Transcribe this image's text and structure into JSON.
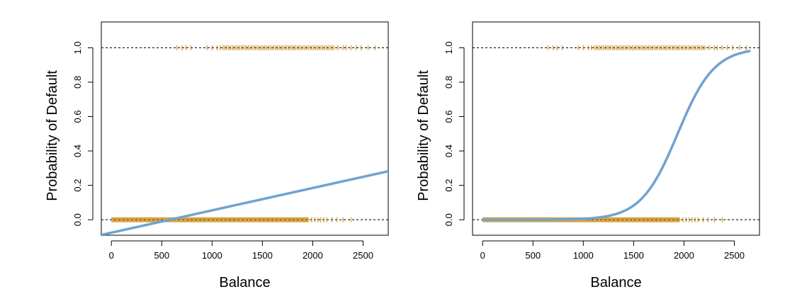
{
  "chart_data": [
    {
      "type": "scatter",
      "title": "",
      "xlabel": "Balance",
      "ylabel": "Probability of Default",
      "xlim": [
        -100,
        2750
      ],
      "ylim": [
        -0.09,
        1.15
      ],
      "x_ticks": [
        0,
        500,
        1000,
        1500,
        2000,
        2500
      ],
      "y_ticks": [
        0.0,
        0.2,
        0.4,
        0.6,
        0.8,
        1.0
      ],
      "x_tick_labels": [
        "0",
        "500",
        "1000",
        "1500",
        "2000",
        "2500"
      ],
      "y_tick_labels": [
        "0.0",
        "0.2",
        "0.4",
        "0.6",
        "0.8",
        "1.0"
      ],
      "reference_lines": [
        0,
        1
      ],
      "grid": false,
      "marks": {
        "default_no": {
          "y": 0,
          "x_solid_range": [
            0,
            1960
          ],
          "x_sparse": [
            1990,
            2020,
            2050,
            2080,
            2110,
            2140,
            2190,
            2240,
            2300,
            2380
          ]
        },
        "default_yes": {
          "y": 1,
          "x_sparse": [
            650,
            700,
            740,
            790,
            950,
            1000,
            1050,
            1080
          ],
          "x_solid_range": [
            1110,
            2220
          ],
          "x_tail": [
            2250,
            2300,
            2330,
            2380,
            2430,
            2480,
            2550,
            2620
          ]
        },
        "marker_color": "#d9a441"
      },
      "fit": {
        "kind": "linear",
        "intercept": -0.0752,
        "slope": 0.0001299,
        "x_range": [
          -100,
          2750
        ],
        "color": "#6fa3d0"
      }
    },
    {
      "type": "scatter",
      "title": "",
      "xlabel": "Balance",
      "ylabel": "Probability of Default",
      "xlim": [
        -100,
        2750
      ],
      "ylim": [
        -0.09,
        1.15
      ],
      "x_ticks": [
        0,
        500,
        1000,
        1500,
        2000,
        2500
      ],
      "y_ticks": [
        0.0,
        0.2,
        0.4,
        0.6,
        0.8,
        1.0
      ],
      "x_tick_labels": [
        "0",
        "500",
        "1000",
        "1500",
        "2000",
        "2500"
      ],
      "y_tick_labels": [
        "0.0",
        "0.2",
        "0.4",
        "0.6",
        "0.8",
        "1.0"
      ],
      "reference_lines": [
        0,
        1
      ],
      "grid": false,
      "marks": {
        "default_no": {
          "y": 0,
          "x_solid_range": [
            0,
            1960
          ],
          "x_sparse": [
            1990,
            2020,
            2050,
            2080,
            2110,
            2140,
            2190,
            2240,
            2300,
            2380
          ]
        },
        "default_yes": {
          "y": 1,
          "x_sparse": [
            650,
            700,
            740,
            790,
            950,
            1000,
            1050,
            1080
          ],
          "x_solid_range": [
            1110,
            2220
          ],
          "x_tail": [
            2250,
            2300,
            2330,
            2380,
            2430,
            2480,
            2550,
            2620
          ]
        },
        "marker_color": "#d9a441"
      },
      "fit": {
        "kind": "logistic",
        "beta0": -10.6513,
        "beta1": 0.005499,
        "x_range": [
          0,
          2650
        ],
        "color": "#6fa3d0"
      }
    }
  ]
}
